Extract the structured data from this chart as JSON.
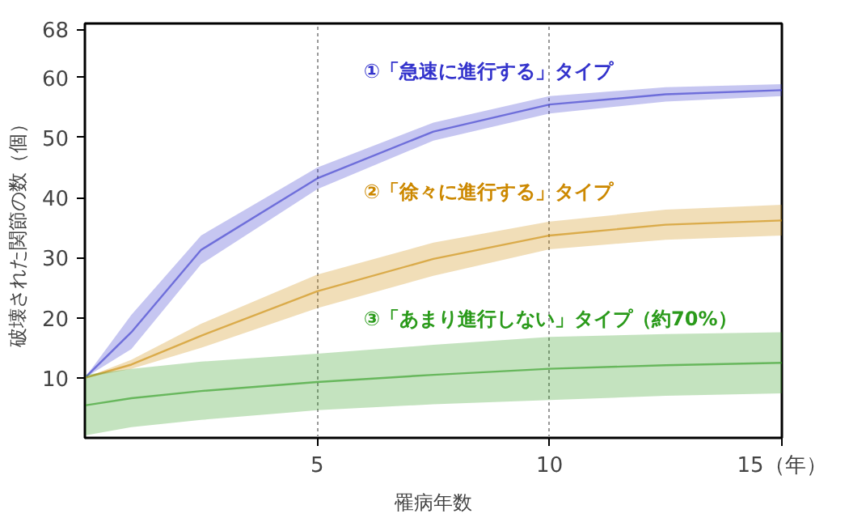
{
  "chart_data": {
    "type": "line",
    "xlabel": "罹病年数",
    "ylabel": "破壊された関節の数（個）",
    "x": [
      0,
      1,
      2.5,
      5,
      7.5,
      10,
      12.5,
      15
    ],
    "series": [
      {
        "name": "①「急速に進行する」タイプ",
        "color": "#3333cc",
        "values": [
          10,
          17.6,
          31.3,
          43.2,
          51,
          55.5,
          57.2,
          57.9
        ],
        "lower": [
          10,
          14.8,
          28.9,
          41.4,
          49.5,
          54,
          56,
          56.9
        ],
        "upper": [
          10,
          20.5,
          33.7,
          45,
          52.5,
          56.9,
          58.4,
          58.9
        ]
      },
      {
        "name": "②「徐々に進行する」タイプ",
        "color": "#cc8800",
        "values": [
          10,
          12.2,
          17,
          24.4,
          29.8,
          33.7,
          35.5,
          36.2
        ],
        "lower": [
          10,
          11.5,
          15,
          21.6,
          27,
          31.4,
          33,
          33.7
        ],
        "upper": [
          10,
          13,
          19,
          27.2,
          32.5,
          36,
          38,
          38.8
        ]
      },
      {
        "name": "③「あまり進行しない」タイプ（約70%）",
        "color": "#2a9a1a",
        "values": [
          5.4,
          6.6,
          7.8,
          9.3,
          10.5,
          11.5,
          12.1,
          12.5
        ],
        "lower": [
          0.4,
          1.8,
          3,
          4.6,
          5.6,
          6.3,
          7,
          7.4
        ],
        "upper": [
          10.5,
          11.5,
          12.7,
          14,
          15.5,
          16.8,
          17.3,
          17.6
        ]
      }
    ],
    "xlim": [
      0,
      15
    ],
    "ylim": [
      0,
      69
    ],
    "xticks": [
      5,
      10,
      {
        "value": 15,
        "label": "15（年）"
      }
    ],
    "yticks": [
      10,
      20,
      30,
      40,
      50,
      60,
      68
    ],
    "grid": "x"
  }
}
